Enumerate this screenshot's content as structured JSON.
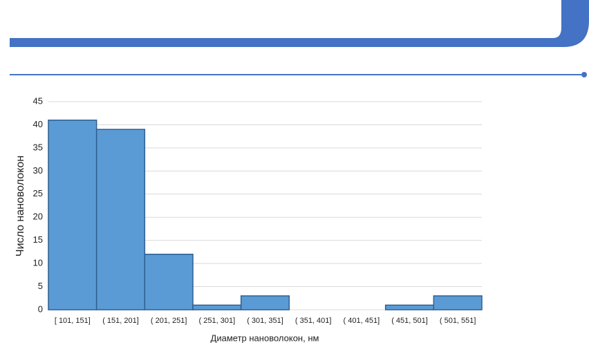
{
  "chart_data": {
    "type": "bar",
    "x_label": "Диаметр нановолокон, нм",
    "y_label": "Число нановолокон",
    "categories": [
      "[ 101,  151]",
      "( 151,  201]",
      "( 201,  251]",
      "( 251,  301]",
      "( 301,  351]",
      "( 351,  401]",
      "( 401,  451]",
      "( 451,  501]",
      "( 501,  551]"
    ],
    "values": [
      41,
      39,
      12,
      1,
      3,
      0,
      0,
      1,
      3
    ],
    "color": "#5b9bd5",
    "ylim": [
      0,
      45
    ],
    "yticks": [
      0,
      5,
      10,
      15,
      20,
      25,
      30,
      35,
      40,
      45
    ],
    "grid": true
  }
}
